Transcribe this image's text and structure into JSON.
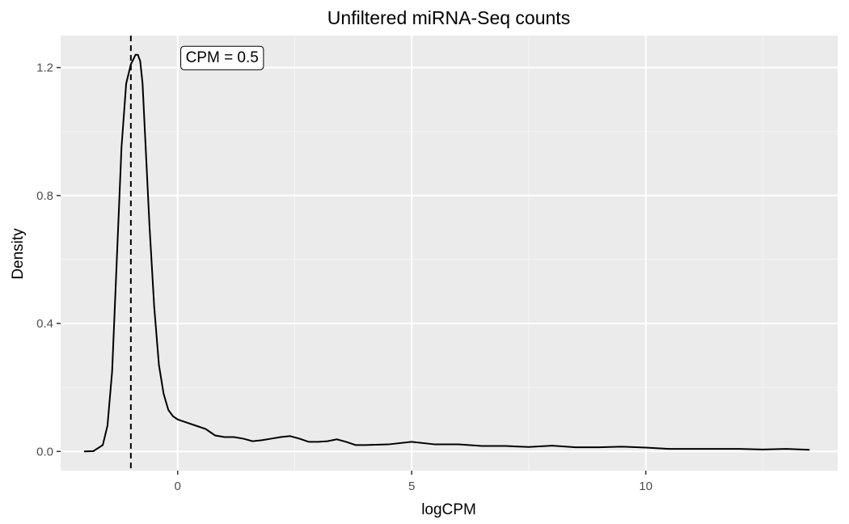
{
  "chart_data": {
    "type": "line",
    "title": "Unfiltered miRNA-Seq counts",
    "xlabel": "logCPM",
    "ylabel": "Density",
    "xlim": [
      -2.5,
      14.1
    ],
    "ylim": [
      -0.06,
      1.3
    ],
    "x_ticks": [
      0,
      5,
      10
    ],
    "x_tick_labels": [
      "0",
      "5",
      "10"
    ],
    "y_ticks": [
      0.0,
      0.4,
      0.8,
      1.2
    ],
    "y_tick_labels": [
      "0.0",
      "0.4",
      "0.8",
      "1.2"
    ],
    "grid": true,
    "legend": "none",
    "vline": {
      "x": -1.0,
      "style": "dashed"
    },
    "annotation": {
      "text": "CPM = 0.5",
      "x": 0.95,
      "y": 1.23
    },
    "series": [
      {
        "x": [
          -2.0,
          -1.8,
          -1.6,
          -1.5,
          -1.4,
          -1.3,
          -1.2,
          -1.1,
          -1.0,
          -0.9,
          -0.85,
          -0.8,
          -0.75,
          -0.7,
          -0.6,
          -0.5,
          -0.4,
          -0.3,
          -0.2,
          -0.1,
          0.0,
          0.2,
          0.4,
          0.6,
          0.8,
          1.0,
          1.2,
          1.4,
          1.6,
          1.8,
          2.0,
          2.2,
          2.4,
          2.6,
          2.8,
          3.0,
          3.2,
          3.4,
          3.6,
          3.8,
          4.0,
          4.5,
          5.0,
          5.5,
          6.0,
          6.5,
          7.0,
          7.5,
          8.0,
          8.5,
          9.0,
          9.5,
          10.0,
          10.5,
          11.0,
          11.5,
          12.0,
          12.5,
          13.0,
          13.5
        ],
        "y": [
          0.0,
          0.001,
          0.02,
          0.08,
          0.25,
          0.6,
          0.95,
          1.15,
          1.21,
          1.24,
          1.24,
          1.22,
          1.15,
          1.0,
          0.7,
          0.45,
          0.27,
          0.18,
          0.13,
          0.11,
          0.1,
          0.09,
          0.08,
          0.07,
          0.05,
          0.045,
          0.045,
          0.04,
          0.032,
          0.035,
          0.04,
          0.045,
          0.048,
          0.04,
          0.03,
          0.03,
          0.032,
          0.038,
          0.03,
          0.02,
          0.02,
          0.022,
          0.03,
          0.022,
          0.022,
          0.017,
          0.017,
          0.014,
          0.018,
          0.013,
          0.013,
          0.015,
          0.012,
          0.008,
          0.008,
          0.008,
          0.008,
          0.006,
          0.008,
          0.005
        ]
      }
    ],
    "colors": {
      "panel": "#ebebeb",
      "grid_major": "#ffffff",
      "grid_minor": "#f5f5f5",
      "line": "#000000",
      "tick": "#333333"
    }
  }
}
